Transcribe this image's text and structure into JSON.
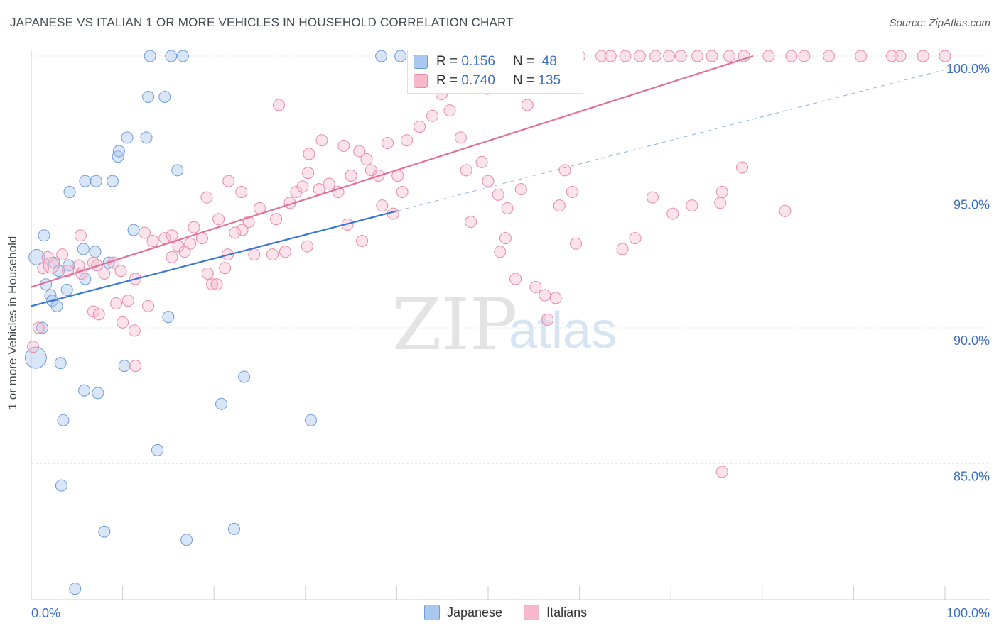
{
  "title": "JAPANESE VS ITALIAN 1 OR MORE VEHICLES IN HOUSEHOLD CORRELATION CHART",
  "source": "Source: ZipAtlas.com",
  "watermark": {
    "zip": "ZIP",
    "atlas": "atlas"
  },
  "legend": {
    "rows": [
      {
        "r_label": "R =",
        "r_value": "0.156",
        "n_label": "N =",
        "n_value": "48",
        "color": "#a8c8f0",
        "border": "#6f9bd8"
      },
      {
        "r_label": "R =",
        "r_value": "0.740",
        "n_label": "N =",
        "n_value": "135",
        "color": "#f7b8cc",
        "border": "#e88aa8"
      }
    ]
  },
  "bottom_legend": [
    {
      "label": "Japanese",
      "color": "#a8c8f0",
      "border": "#6f9bd8"
    },
    {
      "label": "Italians",
      "color": "#f7b8cc",
      "border": "#e88aa8"
    }
  ],
  "chart_data": {
    "type": "scatter",
    "title": "JAPANESE VS ITALIAN 1 OR MORE VEHICLES IN HOUSEHOLD CORRELATION CHART",
    "xlabel": "",
    "ylabel": "1 or more Vehicles in Household",
    "xlim": [
      0,
      100
    ],
    "ylim": [
      80,
      100.5
    ],
    "x_tick_labels": [
      "0.0%",
      "100.0%"
    ],
    "y_ticks": [
      85,
      90,
      95,
      100
    ],
    "y_tick_labels": [
      "85.0%",
      "90.0%",
      "95.0%",
      "100.0%"
    ],
    "colors": {
      "japanese": "#5b93d9",
      "italians": "#e87aa0"
    },
    "series": [
      {
        "name": "Japanese",
        "points": [
          [
            0.5,
            88.9
          ],
          [
            1.2,
            90.0
          ],
          [
            0.6,
            92.6
          ],
          [
            1.4,
            93.4
          ],
          [
            2.1,
            91.2
          ],
          [
            1.6,
            91.6
          ],
          [
            2.3,
            91.0
          ],
          [
            2.8,
            90.8
          ],
          [
            2.5,
            92.4
          ],
          [
            3.0,
            92.1
          ],
          [
            3.9,
            91.4
          ],
          [
            4.1,
            92.3
          ],
          [
            5.7,
            92.9
          ],
          [
            5.9,
            91.8
          ],
          [
            7.0,
            92.8
          ],
          [
            8.5,
            92.4
          ],
          [
            3.2,
            88.7
          ],
          [
            4.2,
            95.0
          ],
          [
            5.9,
            95.4
          ],
          [
            7.1,
            95.4
          ],
          [
            8.9,
            95.4
          ],
          [
            9.5,
            96.3
          ],
          [
            9.6,
            96.5
          ],
          [
            10.5,
            97.0
          ],
          [
            12.6,
            97.0
          ],
          [
            11.2,
            93.6
          ],
          [
            12.8,
            98.5
          ],
          [
            14.6,
            98.5
          ],
          [
            16.0,
            95.8
          ],
          [
            3.3,
            84.2
          ],
          [
            3.5,
            86.6
          ],
          [
            5.8,
            87.7
          ],
          [
            7.3,
            87.6
          ],
          [
            8.0,
            82.5
          ],
          [
            10.2,
            88.6
          ],
          [
            13.8,
            85.5
          ],
          [
            15.0,
            90.4
          ],
          [
            17.0,
            82.2
          ],
          [
            20.8,
            87.2
          ],
          [
            22.2,
            82.6
          ],
          [
            23.3,
            88.2
          ],
          [
            30.6,
            86.6
          ],
          [
            4.8,
            80.4
          ],
          [
            13.0,
            100.0
          ],
          [
            15.3,
            100.0
          ],
          [
            16.6,
            100.0
          ],
          [
            38.3,
            100.0
          ],
          [
            40.4,
            100.0
          ]
        ]
      },
      {
        "name": "Italians",
        "points": [
          [
            0.2,
            89.3
          ],
          [
            0.8,
            90.0
          ],
          [
            1.3,
            92.2
          ],
          [
            1.8,
            92.6
          ],
          [
            2.2,
            92.3
          ],
          [
            3.4,
            92.7
          ],
          [
            4.0,
            92.1
          ],
          [
            5.2,
            92.3
          ],
          [
            5.5,
            92.0
          ],
          [
            6.8,
            92.4
          ],
          [
            7.2,
            92.3
          ],
          [
            8.0,
            92.0
          ],
          [
            9.0,
            92.4
          ],
          [
            9.8,
            92.1
          ],
          [
            11.4,
            91.8
          ],
          [
            5.4,
            93.4
          ],
          [
            6.8,
            90.6
          ],
          [
            7.4,
            90.5
          ],
          [
            9.3,
            90.9
          ],
          [
            10.0,
            90.2
          ],
          [
            10.6,
            91.0
          ],
          [
            11.3,
            89.9
          ],
          [
            12.8,
            90.8
          ],
          [
            11.4,
            88.6
          ],
          [
            12.4,
            93.5
          ],
          [
            13.3,
            93.2
          ],
          [
            14.6,
            93.3
          ],
          [
            15.4,
            93.4
          ],
          [
            16.1,
            93.0
          ],
          [
            17.4,
            93.1
          ],
          [
            17.8,
            93.7
          ],
          [
            18.7,
            93.3
          ],
          [
            15.4,
            92.6
          ],
          [
            16.8,
            92.8
          ],
          [
            19.3,
            92.0
          ],
          [
            19.8,
            91.6
          ],
          [
            20.3,
            91.6
          ],
          [
            21.2,
            92.2
          ],
          [
            21.5,
            92.7
          ],
          [
            22.3,
            93.5
          ],
          [
            23.1,
            93.6
          ],
          [
            23.8,
            93.9
          ],
          [
            24.4,
            92.7
          ],
          [
            26.4,
            92.7
          ],
          [
            27.8,
            92.8
          ],
          [
            28.3,
            94.6
          ],
          [
            29.0,
            95.0
          ],
          [
            29.7,
            95.2
          ],
          [
            30.3,
            95.7
          ],
          [
            31.5,
            95.1
          ],
          [
            32.6,
            95.3
          ],
          [
            33.6,
            95.0
          ],
          [
            34.2,
            96.7
          ],
          [
            35.0,
            95.6
          ],
          [
            35.9,
            96.5
          ],
          [
            36.7,
            96.2
          ],
          [
            37.2,
            95.8
          ],
          [
            38.0,
            95.6
          ],
          [
            39.0,
            96.8
          ],
          [
            40.1,
            95.6
          ],
          [
            41.1,
            96.9
          ],
          [
            42.5,
            97.4
          ],
          [
            43.9,
            97.8
          ],
          [
            45.8,
            98.0
          ],
          [
            47.0,
            97.0
          ],
          [
            47.6,
            95.8
          ],
          [
            48.1,
            93.9
          ],
          [
            49.3,
            96.1
          ],
          [
            50.0,
            95.4
          ],
          [
            51.1,
            94.9
          ],
          [
            51.9,
            93.3
          ],
          [
            52.1,
            94.4
          ],
          [
            53.6,
            95.1
          ],
          [
            51.3,
            92.8
          ],
          [
            57.8,
            94.5
          ],
          [
            58.4,
            95.8
          ],
          [
            59.2,
            95.0
          ],
          [
            53.0,
            91.8
          ],
          [
            55.2,
            91.5
          ],
          [
            56.2,
            91.2
          ],
          [
            57.4,
            91.1
          ],
          [
            56.5,
            90.3
          ],
          [
            59.6,
            93.1
          ],
          [
            64.7,
            92.9
          ],
          [
            66.1,
            93.3
          ],
          [
            68.0,
            94.8
          ],
          [
            70.2,
            94.2
          ],
          [
            72.3,
            94.5
          ],
          [
            75.4,
            94.6
          ],
          [
            77.8,
            95.9
          ],
          [
            82.5,
            94.3
          ],
          [
            36.2,
            93.2
          ],
          [
            38.4,
            94.5
          ],
          [
            39.6,
            94.2
          ],
          [
            40.6,
            95.0
          ],
          [
            26.8,
            94.0
          ],
          [
            25.0,
            94.4
          ],
          [
            23.0,
            95.0
          ],
          [
            21.6,
            95.4
          ],
          [
            20.5,
            94.0
          ],
          [
            19.2,
            94.8
          ],
          [
            30.4,
            96.4
          ],
          [
            31.8,
            96.9
          ],
          [
            27.1,
            98.2
          ],
          [
            44.0,
            99.0
          ],
          [
            44.9,
            98.6
          ],
          [
            49.9,
            98.8
          ],
          [
            54.3,
            98.2
          ],
          [
            55.9,
            99.4
          ],
          [
            58.4,
            100.0
          ],
          [
            60.0,
            100.0
          ],
          [
            62.4,
            100.0
          ],
          [
            63.4,
            100.0
          ],
          [
            65.0,
            100.0
          ],
          [
            66.6,
            100.0
          ],
          [
            68.3,
            100.0
          ],
          [
            69.8,
            100.0
          ],
          [
            71.1,
            100.0
          ],
          [
            72.9,
            100.0
          ],
          [
            74.5,
            100.0
          ],
          [
            76.4,
            100.0
          ],
          [
            78.0,
            100.0
          ],
          [
            80.7,
            100.0
          ],
          [
            83.2,
            100.0
          ],
          [
            84.6,
            100.0
          ],
          [
            87.3,
            100.0
          ],
          [
            90.8,
            100.0
          ],
          [
            94.2,
            100.0
          ],
          [
            95.1,
            100.0
          ],
          [
            97.6,
            100.0
          ],
          [
            100.0,
            100.0
          ],
          [
            75.6,
            95.0
          ],
          [
            75.6,
            84.7
          ],
          [
            30.2,
            93.0
          ],
          [
            34.6,
            93.8
          ]
        ]
      }
    ],
    "trendlines": [
      {
        "series": "Japanese",
        "from": [
          0,
          90.8
        ],
        "to": [
          40,
          94.3
        ],
        "style": "solid"
      },
      {
        "series": "Japanese",
        "from": [
          40,
          94.3
        ],
        "to": [
          100,
          99.5
        ],
        "style": "dashed"
      },
      {
        "series": "Italians",
        "from": [
          0,
          91.5
        ],
        "to": [
          79,
          100.0
        ],
        "style": "solid"
      }
    ]
  }
}
